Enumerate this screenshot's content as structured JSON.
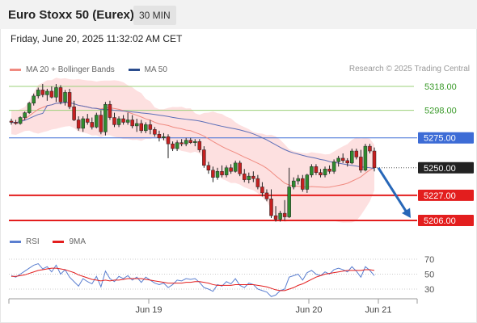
{
  "header": {
    "title": "Euro Stoxx 50 (Eurex)",
    "timeframe": "30 MIN"
  },
  "datetime": "Friday, June 20, 2025 11:32:02 AM CET",
  "copyright": "Research © 2025 Trading Central",
  "colors": {
    "resistance": "#9bd07a",
    "pivot": "#3d6cd6",
    "support": "#e31e1e",
    "current": "#222222",
    "up_candle": "#2f8b2f",
    "down_candle": "#c62020",
    "band_fill": "#fde0e0",
    "ma20": "#f08a80",
    "ma50": "#5d6fb8",
    "rsi": "#5b7fd0",
    "rsi_ma": "#e31e1e",
    "arrow": "#2767b8"
  },
  "chart_data": [
    {
      "type": "candlestick",
      "legend": [
        {
          "name": "MA 20 + Bollinger Bands",
          "color": "#f08a80"
        },
        {
          "name": "MA 50",
          "color": "#2b4d8e"
        }
      ],
      "x_ticks": [
        "Jun 19",
        "Jun 20",
        "Jun 21"
      ],
      "levels": [
        {
          "value": 5318.0,
          "label": "5318.00",
          "kind": "resistance"
        },
        {
          "value": 5298.0,
          "label": "5298.00",
          "kind": "resistance"
        },
        {
          "value": 5275.0,
          "label": "5275.00",
          "kind": "pivot"
        },
        {
          "value": 5250.0,
          "label": "5250.00",
          "kind": "current"
        },
        {
          "value": 5227.0,
          "label": "5227.00",
          "kind": "support"
        },
        {
          "value": 5206.0,
          "label": "5206.00",
          "kind": "support"
        }
      ],
      "ylim": [
        5200,
        5330
      ],
      "candles": [
        [
          5289,
          5291,
          5286,
          5288
        ],
        [
          5288,
          5290,
          5286,
          5287
        ],
        [
          5287,
          5293,
          5286,
          5292
        ],
        [
          5292,
          5297,
          5290,
          5296
        ],
        [
          5296,
          5305,
          5295,
          5304
        ],
        [
          5304,
          5312,
          5302,
          5310
        ],
        [
          5310,
          5317,
          5308,
          5315
        ],
        [
          5315,
          5320,
          5309,
          5311
        ],
        [
          5311,
          5316,
          5306,
          5314
        ],
        [
          5314,
          5318,
          5308,
          5309
        ],
        [
          5309,
          5320,
          5305,
          5317
        ],
        [
          5317,
          5319,
          5303,
          5305
        ],
        [
          5305,
          5315,
          5302,
          5313
        ],
        [
          5313,
          5316,
          5299,
          5301
        ],
        [
          5301,
          5306,
          5289,
          5290
        ],
        [
          5290,
          5293,
          5281,
          5283
        ],
        [
          5283,
          5293,
          5280,
          5291
        ],
        [
          5291,
          5295,
          5286,
          5288
        ],
        [
          5288,
          5292,
          5282,
          5284
        ],
        [
          5284,
          5296,
          5283,
          5294
        ],
        [
          5294,
          5298,
          5278,
          5280
        ],
        [
          5280,
          5305,
          5277,
          5303
        ],
        [
          5303,
          5306,
          5290,
          5292
        ],
        [
          5292,
          5296,
          5284,
          5286
        ],
        [
          5286,
          5293,
          5284,
          5291
        ],
        [
          5291,
          5294,
          5286,
          5288
        ],
        [
          5288,
          5296,
          5286,
          5290
        ],
        [
          5290,
          5294,
          5283,
          5285
        ],
        [
          5285,
          5291,
          5280,
          5287
        ],
        [
          5287,
          5290,
          5279,
          5281
        ],
        [
          5281,
          5288,
          5279,
          5286
        ],
        [
          5286,
          5290,
          5278,
          5282
        ],
        [
          5282,
          5284,
          5276,
          5278
        ],
        [
          5278,
          5281,
          5272,
          5275
        ],
        [
          5275,
          5279,
          5273,
          5276
        ],
        [
          5276,
          5278,
          5258,
          5270
        ],
        [
          5270,
          5272,
          5264,
          5266
        ],
        [
          5266,
          5273,
          5264,
          5271
        ],
        [
          5271,
          5274,
          5268,
          5270
        ],
        [
          5270,
          5275,
          5268,
          5273
        ],
        [
          5273,
          5275,
          5270,
          5271
        ],
        [
          5271,
          5274,
          5268,
          5272
        ],
        [
          5272,
          5274,
          5263,
          5265
        ],
        [
          5265,
          5268,
          5250,
          5252
        ],
        [
          5252,
          5255,
          5245,
          5248
        ],
        [
          5248,
          5251,
          5238,
          5242
        ],
        [
          5242,
          5250,
          5240,
          5247
        ],
        [
          5247,
          5252,
          5242,
          5244
        ],
        [
          5244,
          5252,
          5242,
          5250
        ],
        [
          5250,
          5253,
          5245,
          5247
        ],
        [
          5247,
          5256,
          5246,
          5254
        ],
        [
          5254,
          5256,
          5243,
          5245
        ],
        [
          5245,
          5249,
          5238,
          5240
        ],
        [
          5240,
          5246,
          5237,
          5243
        ],
        [
          5243,
          5247,
          5238,
          5241
        ],
        [
          5241,
          5244,
          5232,
          5234
        ],
        [
          5234,
          5238,
          5226,
          5229
        ],
        [
          5229,
          5232,
          5222,
          5224
        ],
        [
          5224,
          5232,
          5208,
          5210
        ],
        [
          5210,
          5218,
          5205,
          5207
        ],
        [
          5207,
          5214,
          5205,
          5212
        ],
        [
          5212,
          5223,
          5206,
          5209
        ],
        [
          5209,
          5250,
          5208,
          5234
        ],
        [
          5234,
          5242,
          5232,
          5239
        ],
        [
          5239,
          5244,
          5236,
          5241
        ],
        [
          5241,
          5244,
          5230,
          5232
        ],
        [
          5232,
          5245,
          5229,
          5244
        ],
        [
          5244,
          5253,
          5242,
          5251
        ],
        [
          5251,
          5253,
          5244,
          5246
        ],
        [
          5246,
          5249,
          5242,
          5244
        ],
        [
          5244,
          5251,
          5242,
          5249
        ],
        [
          5249,
          5252,
          5245,
          5247
        ],
        [
          5247,
          5257,
          5245,
          5255
        ],
        [
          5255,
          5260,
          5251,
          5258
        ],
        [
          5258,
          5262,
          5254,
          5256
        ],
        [
          5256,
          5258,
          5251,
          5254
        ],
        [
          5254,
          5266,
          5253,
          5264
        ],
        [
          5264,
          5266,
          5257,
          5259
        ],
        [
          5259,
          5265,
          5246,
          5248
        ],
        [
          5248,
          5270,
          5247,
          5268
        ],
        [
          5268,
          5270,
          5262,
          5264
        ],
        [
          5264,
          5267,
          5247,
          5250
        ]
      ]
    },
    {
      "type": "line",
      "legend": [
        {
          "name": "RSI",
          "color": "#5b7fd0"
        },
        {
          "name": "9MA",
          "color": "#e31e1e"
        }
      ],
      "y_ticks": [
        70,
        50,
        30
      ],
      "ylim": [
        20,
        80
      ],
      "rsi": [
        48,
        46,
        50,
        54,
        58,
        62,
        64,
        57,
        60,
        53,
        62,
        50,
        56,
        46,
        40,
        34,
        44,
        40,
        37,
        47,
        33,
        54,
        44,
        40,
        47,
        44,
        48,
        42,
        46,
        39,
        46,
        42,
        38,
        36,
        38,
        32,
        36,
        42,
        41,
        44,
        43,
        44,
        39,
        32,
        30,
        27,
        36,
        34,
        40,
        37,
        44,
        35,
        32,
        38,
        36,
        30,
        28,
        26,
        20,
        22,
        28,
        30,
        46,
        48,
        50,
        42,
        52,
        55,
        50,
        48,
        53,
        50,
        56,
        58,
        56,
        53,
        60,
        54,
        46,
        60,
        55,
        48
      ],
      "ma9": [
        47,
        47,
        48,
        49,
        51,
        53,
        55,
        56,
        57,
        58,
        58,
        57,
        56,
        54,
        52,
        49,
        47,
        45,
        43,
        42,
        41,
        42,
        41,
        42,
        42,
        43,
        44,
        44,
        44,
        44,
        43,
        42,
        41,
        40,
        39,
        38,
        38,
        38,
        38,
        39,
        39,
        40,
        40,
        39,
        38,
        36,
        35,
        35,
        35,
        35,
        36,
        36,
        36,
        36,
        36,
        35,
        34,
        33,
        31,
        29,
        28,
        28,
        30,
        32,
        35,
        37,
        40,
        43,
        46,
        48,
        50,
        51,
        52,
        53,
        54,
        55,
        55,
        55,
        55,
        56,
        56,
        55
      ]
    }
  ]
}
